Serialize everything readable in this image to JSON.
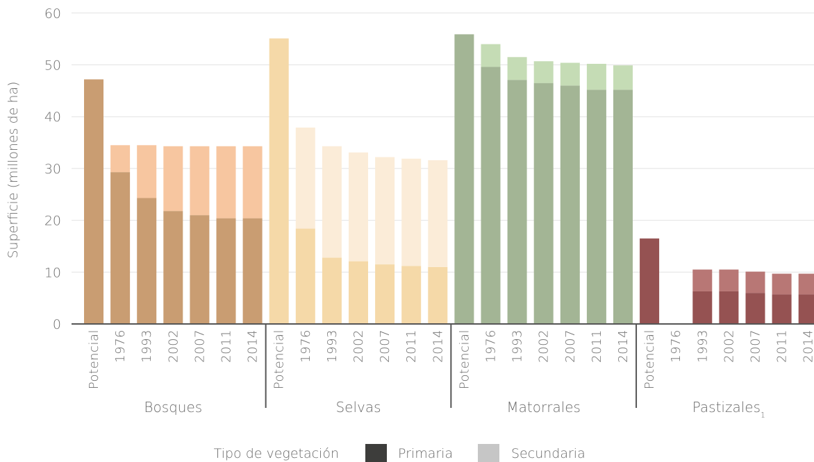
{
  "chart_data": {
    "type": "bar",
    "stacked": true,
    "ylabel": "Superficie (millones de ha)",
    "ylim": [
      0,
      60
    ],
    "yticks": [
      0,
      10,
      20,
      30,
      40,
      50,
      60
    ],
    "grid": true,
    "categories": [
      "Potencial",
      "1976",
      "1993",
      "2002",
      "2007",
      "2011",
      "2014"
    ],
    "groups": [
      {
        "name": "Bosques",
        "footnote": "",
        "colors": {
          "primaria": "#c99d72",
          "secundaria": "#f7c6a0"
        },
        "primaria": [
          47.2,
          29.3,
          24.3,
          21.8,
          21.0,
          20.4,
          20.4
        ],
        "secundaria": [
          0,
          5.2,
          10.2,
          12.5,
          13.3,
          13.9,
          13.9
        ]
      },
      {
        "name": "Selvas",
        "footnote": "",
        "colors": {
          "primaria": "#f5d9a8",
          "secundaria": "#fbecd8"
        },
        "primaria": [
          55.1,
          18.4,
          12.8,
          12.1,
          11.5,
          11.2,
          11.0
        ],
        "secundaria": [
          0,
          19.5,
          21.5,
          21.0,
          20.7,
          20.7,
          20.6
        ]
      },
      {
        "name": "Matorrales",
        "footnote": "",
        "colors": {
          "primaria": "#a3b595",
          "secundaria": "#c5dcb5"
        },
        "primaria": [
          55.9,
          49.6,
          47.1,
          46.5,
          46.0,
          45.2,
          45.2
        ],
        "secundaria": [
          0,
          4.4,
          4.4,
          4.2,
          4.4,
          5.0,
          4.7
        ]
      },
      {
        "name": "Pastizales",
        "footnote": "1",
        "colors": {
          "primaria": "#955252",
          "secundaria": "#b87775"
        },
        "primaria": [
          16.5,
          0,
          6.3,
          6.3,
          6.0,
          5.7,
          5.7
        ],
        "secundaria": [
          0,
          0,
          4.2,
          4.2,
          4.1,
          4.0,
          4.0
        ]
      }
    ],
    "legend": {
      "title": "Tipo de vegetación",
      "placement": "bottom",
      "items": [
        {
          "label": "Primaria",
          "color": "#3d3d3b"
        },
        {
          "label": "Secundaria",
          "color": "#c6c6c6"
        }
      ]
    }
  }
}
